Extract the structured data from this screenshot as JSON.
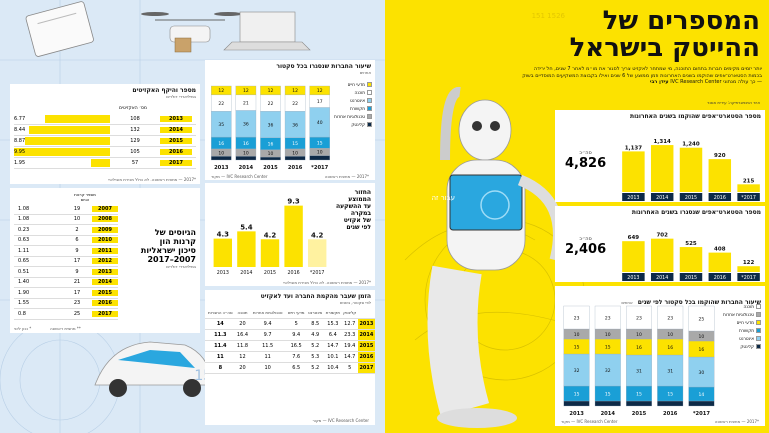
{
  "header": {
    "title_line1": "המספרים של",
    "title_line2": "ההייטק בישראל",
    "intro": "יותר יזמים מקימים חברות בתחום התוכנה, מי שמתחר לאקזיט צריך לסגור את מו״מ לאחר 7 שנים, חל ירידה בכמות הסטארט־אפים שהוקמו בשנים האחרונות וזמן ממוצע של 6 שנים ואילו בקבוצת המשקיעים המוסדיים בשוק — כך עולה מנתוני IVC Research Center",
    "byline": "עידן רבי",
    "credit": "איור ואינפוגרפיקה: עירית אסנר"
  },
  "founded": {
    "title": "מספר הסטארט־אפים שהוקמו בשנים האחרונות",
    "total_label": "סה״כ",
    "total": "4,826"
  },
  "closed": {
    "title": "מספר הסטארט־אפים שנסגרו בשנים האחרונות",
    "total_label": "סה״כ",
    "total": "2,406"
  },
  "sector_right": {
    "title": "שיעור החברות שהוקמו בכל סקטור לפי שנים",
    "unit": "אחוזים",
    "legend": [
      "תוכנה",
      "טכנולוגיות אחרות",
      "מדעי חיים",
      "תקשורת",
      "אינטרנט",
      "קלינטק"
    ],
    "source": "IVC Research Center — מקור",
    "note": "*2017 — מחצית ראשונה"
  },
  "sector_left": {
    "title": "שיעור החברות שנסגרו בכל סקטור",
    "unit": "אחוזים",
    "legend": [
      "מדעי חיים",
      "תוכנה",
      "אינטרנט",
      "תקשורת",
      "טכנולוגיות אחרות",
      "קלינטק"
    ],
    "source": "IVC Research Center — מקור",
    "note": "*2017 — מחצית ראשונה"
  },
  "exits": {
    "title": "מספר והיקף האקזיטים",
    "subtitle": "במיליארדי דולרים",
    "col_count": "מס׳ האקזיטים",
    "rows": [
      {
        "year": "2013",
        "count": "108",
        "value": "6.77"
      },
      {
        "year": "2014",
        "count": "132",
        "value": "8.44"
      },
      {
        "year": "2015",
        "count": "129",
        "value": "8.87"
      },
      {
        "year": "2016",
        "count": "105",
        "value": "9.95"
      },
      {
        "year": "2017",
        "count": "57",
        "value": "1.95"
      }
    ],
    "note": "*2017 — מחצית ראשונה. לא כולל מכירת מובילאיי"
  },
  "vc_funds": {
    "title_line1": "הגיוסים של",
    "title_line2": "קרנות הון",
    "title_line3": "סיכון ישראליות",
    "title_line4": "2007–2017",
    "subtitle": "במיליארדי דולרים",
    "col_count": "מספר קרנות הגיוס",
    "rows": [
      {
        "year": "2007",
        "count": "19",
        "value": "1.08"
      },
      {
        "year": "2008",
        "count": "10",
        "value": "1.08"
      },
      {
        "year": "2009",
        "count": "2",
        "value": "0.23"
      },
      {
        "year": "2010",
        "count": "6",
        "value": "0.63"
      },
      {
        "year": "2011",
        "count": "9",
        "value": "1.11"
      },
      {
        "year": "2012",
        "count": "17",
        "value": "0.65"
      },
      {
        "year": "2013",
        "count": "9",
        "value": "0.51"
      },
      {
        "year": "2014",
        "count": "21",
        "value": "1.40"
      },
      {
        "year": "2015",
        "count": "17",
        "value": "1.90"
      },
      {
        "year": "2016",
        "count": "23",
        "value": "1.55"
      },
      {
        "year": "2017",
        "count": "25",
        "value": "0.8"
      }
    ],
    "note_a": "* נכון ליוני",
    "note_b": "** מחצית ראשונה"
  },
  "avg_time": {
    "title": "הזמן שעבר מהקמת החברה ועד לאקזיט",
    "subtitle": "לפי סקטור, בשנים",
    "headers": [
      "קלינטק",
      "תקשורת",
      "אינטרנט",
      "מדעי חיים",
      "טכנולוגיות אחרות",
      "תוכנה",
      "סה״כ החברות"
    ],
    "rows": [
      {
        "year": "2013",
        "cells": [
          "12.7",
          "15.3",
          "8.5",
          "5",
          "9.4",
          "20",
          "14"
        ]
      },
      {
        "year": "2014",
        "cells": [
          "23.3",
          "6.4",
          "4.9",
          "9.4",
          "9.7",
          "16.4",
          "11.3"
        ]
      },
      {
        "year": "2015",
        "cells": [
          "19.4",
          "14.7",
          "5.2",
          "16.5",
          "11.5",
          "11.8",
          "11.4"
        ]
      },
      {
        "year": "2016",
        "cells": [
          "14.7",
          "10.1",
          "5.3",
          "7.6",
          "11",
          "12",
          "11"
        ]
      },
      {
        "year": "2017",
        "cells": [
          "5",
          "10.4",
          "5.2",
          "6.5",
          "10",
          "20",
          "8"
        ]
      }
    ],
    "source": "IVC Research Center — מקור"
  },
  "time_to_exit": {
    "title_line1": "החזור",
    "title_line2": "הממוצע",
    "title_line3": "עד ההשקעה",
    "title_line4": "במקרה",
    "title_line5": "של אקזיט",
    "title_line6": "לפי שנים",
    "note": "*2017 — מחצית ראשונה. לא כולל מכירת מובילאיי"
  },
  "screen_text": "עבור זה",
  "corner_number": "1526 151",
  "left_corner_number": "1526",
  "colors": {
    "yellow": "#fce200",
    "navy": "#0e2a47",
    "teal": "#1a9fd6",
    "lightblue": "#8fd0ef",
    "gray": "#a9a9a9",
    "paleyellow": "#fff2a0",
    "dark": "#1c1c1c"
  },
  "chart_data": [
    {
      "type": "bar",
      "title": "מספר הסטארט־אפים שהוקמו בשנים האחרונות",
      "categories": [
        "2013",
        "2014",
        "2015",
        "2016",
        "2017*"
      ],
      "values": [
        1137,
        1314,
        1240,
        920,
        215
      ],
      "ylim": [
        0,
        1400
      ]
    },
    {
      "type": "bar",
      "title": "מספר הסטארט־אפים שנסגרו בשנים האחרונות",
      "categories": [
        "2013",
        "2014",
        "2015",
        "2016",
        "2017*"
      ],
      "values": [
        649,
        702,
        525,
        408,
        122
      ],
      "ylim": [
        0,
        800
      ]
    },
    {
      "type": "bar",
      "title": "החזור הממוצע עד ההשקעה במקרה של אקזיט לפי שנים",
      "categories": [
        "2013",
        "2014",
        "2015",
        "2016",
        "2017*"
      ],
      "values": [
        4.3,
        5.4,
        4.2,
        9.3,
        4.2
      ],
      "ylim": [
        0,
        10
      ]
    },
    {
      "type": "bar",
      "title": "שיעור החברות שהוקמו בכל סקטור לפי שנים",
      "categories": [
        "2013",
        "2014",
        "2015",
        "2016",
        "2017*"
      ],
      "series": [
        {
          "name": "קלינטק",
          "values": [
            5,
            5,
            5,
            5,
            5
          ]
        },
        {
          "name": "תקשורת",
          "values": [
            15,
            15,
            15,
            15,
            14
          ]
        },
        {
          "name": "אינטרנט",
          "values": [
            32,
            32,
            31,
            31,
            30
          ]
        },
        {
          "name": "מדעי חיים",
          "values": [
            15,
            15,
            16,
            16,
            16
          ]
        },
        {
          "name": "טכנולוגיות אחרות",
          "values": [
            10,
            10,
            10,
            10,
            10
          ]
        },
        {
          "name": "תוכנה",
          "values": [
            23,
            23,
            23,
            23,
            25
          ]
        }
      ],
      "ylim": [
        0,
        100
      ]
    },
    {
      "type": "bar",
      "title": "שיעור החברות שנסגרו בכל סקטור",
      "categories": [
        "2013",
        "2014",
        "2015",
        "2016",
        "2017*"
      ],
      "series": [
        {
          "name": "קלינטק",
          "values": [
            5,
            5,
            4,
            5,
            6
          ]
        },
        {
          "name": "טכנולוגיות אחרות",
          "values": [
            10,
            10,
            10,
            10,
            10
          ]
        },
        {
          "name": "תקשורת",
          "values": [
            16,
            16,
            16,
            15,
            15
          ]
        },
        {
          "name": "אינטרנט",
          "values": [
            35,
            36,
            36,
            36,
            40
          ]
        },
        {
          "name": "תוכנה",
          "values": [
            22,
            21,
            22,
            22,
            17
          ]
        },
        {
          "name": "מדעי חיים",
          "values": [
            12,
            12,
            12,
            12,
            12
          ]
        }
      ],
      "ylim": [
        0,
        100
      ]
    }
  ]
}
